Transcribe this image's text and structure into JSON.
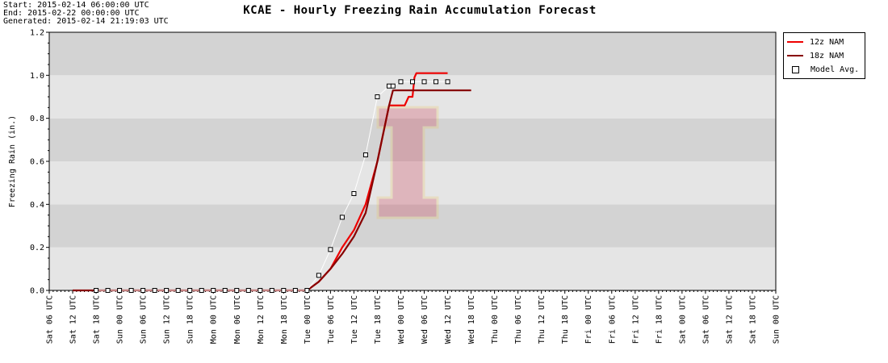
{
  "header": {
    "start": "Start: 2015-02-14 06:00:00 UTC",
    "end": "End: 2015-02-22 00:00:00 UTC",
    "generated": "Generated: 2015-02-14 21:19:03 UTC",
    "title": "KCAE - Hourly Freezing Rain Accumulation Forecast"
  },
  "colors": {
    "nam12": "#ee0000",
    "nam18": "#880000",
    "band_dark": "#d3d3d3",
    "band_light": "#e5e5e5"
  },
  "chart_data": {
    "type": "line",
    "title": "KCAE - Hourly Freezing Rain Accumulation Forecast",
    "ylabel": "Freezing Rain (in.)",
    "xlabel": "",
    "ylim": [
      0,
      1.2
    ],
    "yticks": [
      "0.0",
      "0.2",
      "0.4",
      "0.6",
      "0.8",
      "1.0",
      "1.2"
    ],
    "x_unit": "hours since Sat 06 UTC",
    "xlim": [
      0,
      186
    ],
    "xticks": [
      "Sat 06 UTC",
      "Sat 12 UTC",
      "Sat 18 UTC",
      "Sun 00 UTC",
      "Sun 06 UTC",
      "Sun 12 UTC",
      "Sun 18 UTC",
      "Mon 00 UTC",
      "Mon 06 UTC",
      "Mon 12 UTC",
      "Mon 18 UTC",
      "Tue 00 UTC",
      "Tue 06 UTC",
      "Tue 12 UTC",
      "Tue 18 UTC",
      "Wed 00 UTC",
      "Wed 06 UTC",
      "Wed 12 UTC",
      "Wed 18 UTC",
      "Thu 00 UTC",
      "Thu 06 UTC",
      "Thu 12 UTC",
      "Thu 18 UTC",
      "Fri 00 UTC",
      "Fri 06 UTC",
      "Fri 12 UTC",
      "Fri 18 UTC",
      "Sat 00 UTC",
      "Sat 06 UTC",
      "Sat 12 UTC",
      "Sat 18 UTC",
      "Sun 00 UTC"
    ],
    "grid": true,
    "legend_position": "outside-right",
    "series": [
      {
        "name": "12z NAM",
        "x": [
          66,
          69,
          72,
          75,
          78,
          81,
          84,
          87,
          88,
          89,
          90,
          91,
          92,
          93,
          93.5,
          94,
          94.5,
          95,
          96,
          99,
          102
        ],
        "values": [
          0,
          0.04,
          0.1,
          0.2,
          0.28,
          0.4,
          0.6,
          0.86,
          0.86,
          0.86,
          0.86,
          0.86,
          0.9,
          0.9,
          0.99,
          1.01,
          1.01,
          1.01,
          1.01,
          1.01,
          1.01
        ]
      },
      {
        "name": "18z NAM",
        "x": [
          6,
          12,
          66,
          69,
          72,
          75,
          78,
          81,
          84,
          87,
          88,
          89,
          90,
          91,
          93,
          96,
          99,
          102,
          105,
          108
        ],
        "values": [
          0,
          0,
          0,
          0.04,
          0.1,
          0.17,
          0.25,
          0.36,
          0.6,
          0.86,
          0.93,
          0.93,
          0.93,
          0.93,
          0.93,
          0.93,
          0.93,
          0.93,
          0.93,
          0.93
        ]
      },
      {
        "name": "Model Avg.",
        "x": [
          12,
          15,
          18,
          21,
          24,
          27,
          30,
          33,
          36,
          39,
          42,
          45,
          48,
          51,
          54,
          57,
          60,
          63,
          66,
          69,
          72,
          75,
          78,
          81,
          84,
          87,
          88,
          90,
          93,
          96,
          99,
          102
        ],
        "values": [
          0,
          0,
          0,
          0,
          0,
          0,
          0,
          0,
          0,
          0,
          0,
          0,
          0,
          0,
          0,
          0,
          0,
          0,
          0,
          0.07,
          0.19,
          0.34,
          0.45,
          0.63,
          0.9,
          0.95,
          0.95,
          0.97,
          0.97,
          0.97,
          0.97,
          0.97
        ]
      }
    ]
  },
  "legend": {
    "items": [
      {
        "label": "12z NAM"
      },
      {
        "label": "18z NAM"
      },
      {
        "label": "Model Avg."
      }
    ]
  }
}
